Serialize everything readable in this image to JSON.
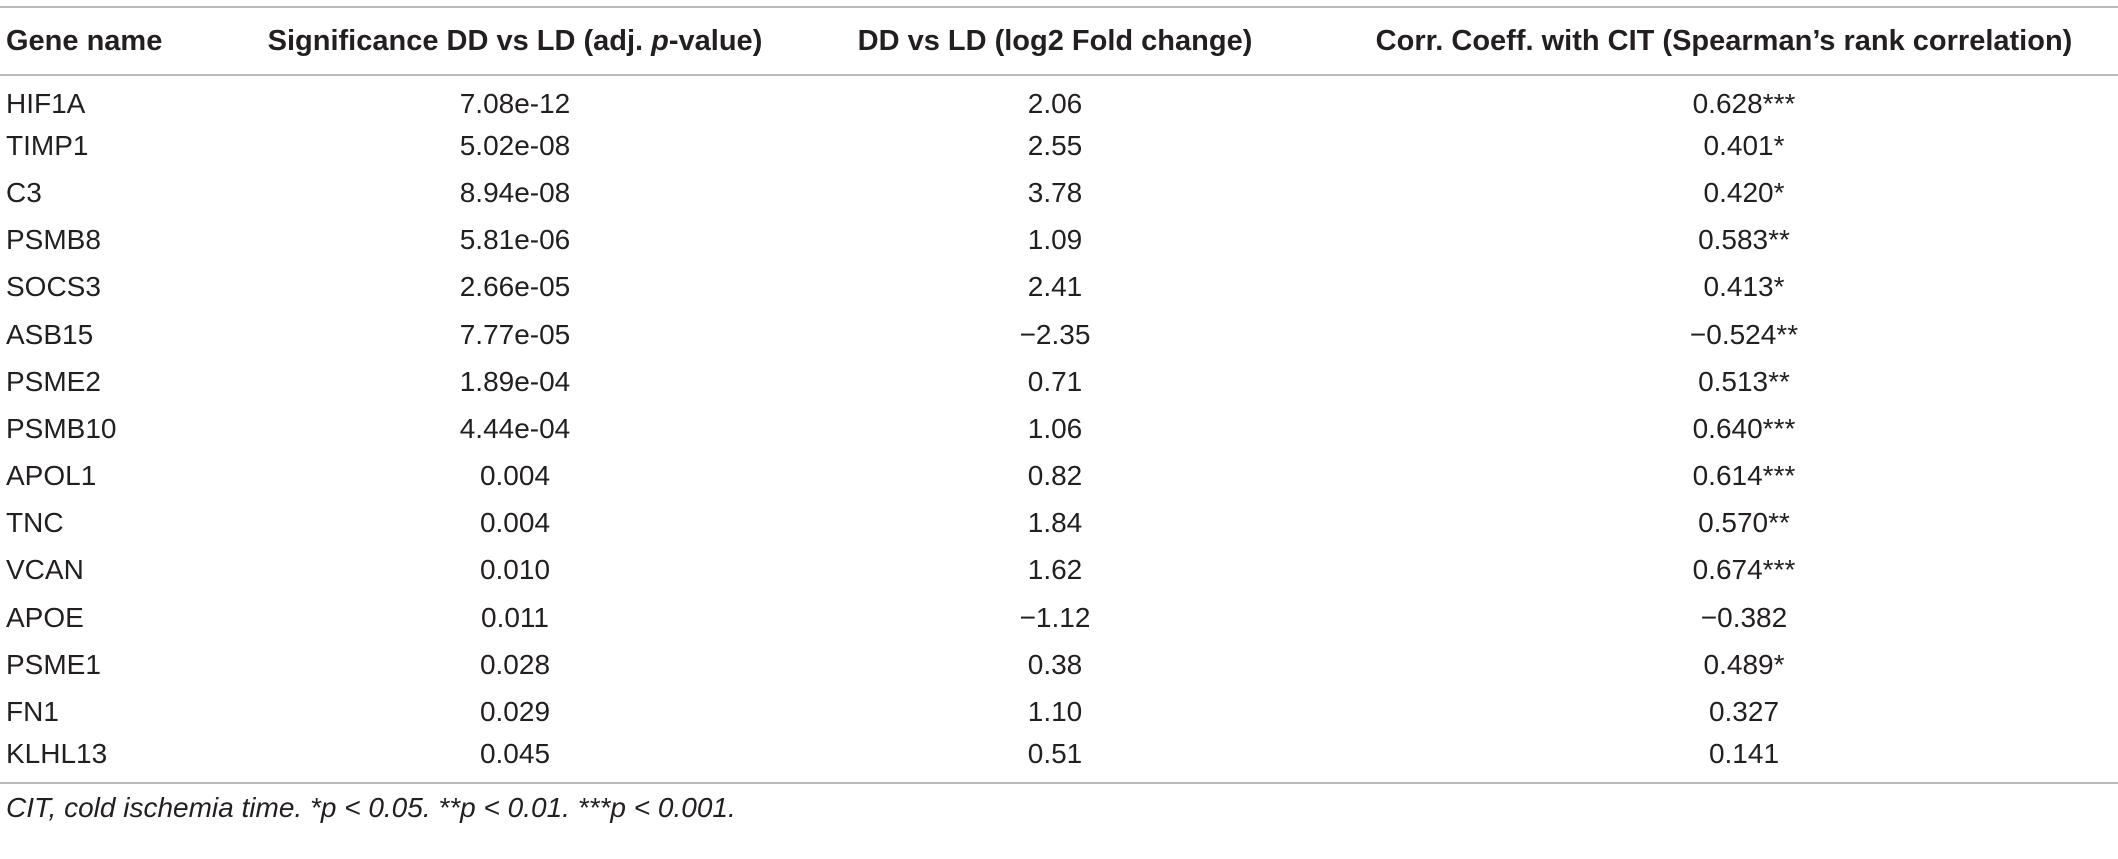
{
  "table": {
    "headers": {
      "gene": "Gene name",
      "sig_prefix": "Significance DD vs LD (adj. ",
      "sig_italic": "p",
      "sig_suffix": "-value)",
      "fold": "DD vs LD (log2 Fold change)",
      "corr": "Corr. Coeff. with CIT (Spearman’s rank correlation)"
    },
    "rows": [
      {
        "gene": "HIF1A",
        "padj": "7.08e-12",
        "log2fc": "2.06",
        "corr": "0.628***"
      },
      {
        "gene": "TIMP1",
        "padj": "5.02e-08",
        "log2fc": "2.55",
        "corr": "0.401*"
      },
      {
        "gene": "C3",
        "padj": "8.94e-08",
        "log2fc": "3.78",
        "corr": "0.420*"
      },
      {
        "gene": "PSMB8",
        "padj": "5.81e-06",
        "log2fc": "1.09",
        "corr": "0.583**"
      },
      {
        "gene": "SOCS3",
        "padj": "2.66e-05",
        "log2fc": "2.41",
        "corr": "0.413*"
      },
      {
        "gene": "ASB15",
        "padj": "7.77e-05",
        "log2fc": "−2.35",
        "corr": "−0.524**"
      },
      {
        "gene": "PSME2",
        "padj": "1.89e-04",
        "log2fc": "0.71",
        "corr": "0.513**"
      },
      {
        "gene": "PSMB10",
        "padj": "4.44e-04",
        "log2fc": "1.06",
        "corr": "0.640***"
      },
      {
        "gene": "APOL1",
        "padj": "0.004",
        "log2fc": "0.82",
        "corr": "0.614***"
      },
      {
        "gene": "TNC",
        "padj": "0.004",
        "log2fc": "1.84",
        "corr": "0.570**"
      },
      {
        "gene": "VCAN",
        "padj": "0.010",
        "log2fc": "1.62",
        "corr": "0.674***"
      },
      {
        "gene": "APOE",
        "padj": "0.011",
        "log2fc": "−1.12",
        "corr": "−0.382"
      },
      {
        "gene": "PSME1",
        "padj": "0.028",
        "log2fc": "0.38",
        "corr": "0.489*"
      },
      {
        "gene": "FN1",
        "padj": "0.029",
        "log2fc": "1.10",
        "corr": "0.327"
      },
      {
        "gene": "KLHL13",
        "padj": "0.045",
        "log2fc": "0.51",
        "corr": "0.141"
      }
    ],
    "footnote": "CIT, cold ischemia time. *p < 0.05. **p < 0.01. ***p < 0.001."
  }
}
